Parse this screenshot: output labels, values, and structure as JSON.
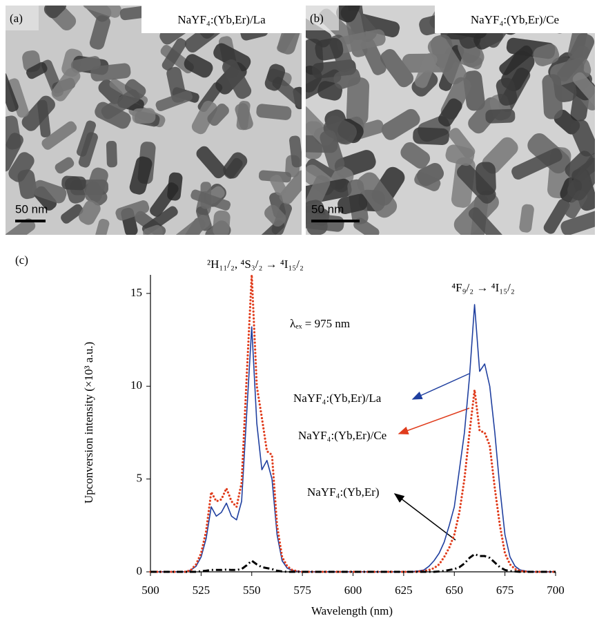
{
  "panels": [
    {
      "label": "(a)",
      "caption": "NaYF₄:(Yb,Er)/La",
      "scale_bar": "50 nm"
    },
    {
      "label": "(b)",
      "caption": "NaYF₄:(Yb,Er)/Ce",
      "scale_bar": "50 nm"
    }
  ],
  "panel_c_label": "(c)",
  "chart_data": {
    "type": "line",
    "xlabel": "Wavelength (nm)",
    "ylabel": "Upconversion intensity (×10³ a.u.)",
    "annotations": [
      "²H₁₁/₂, ⁴S₃/₂ → ⁴I₁₅/₂",
      "⁴F₉/₂ → ⁴I₁₅/₂",
      "λₑₓ = 975 nm"
    ],
    "xlim": [
      500,
      700
    ],
    "xticks": [
      500,
      525,
      550,
      575,
      600,
      625,
      650,
      675,
      700
    ],
    "ylim": [
      0,
      16
    ],
    "yticks": [
      0,
      5,
      10,
      15
    ],
    "x": [
      500,
      502.5,
      505,
      507.5,
      510,
      512.5,
      515,
      517.5,
      520,
      522.5,
      525,
      527.5,
      530,
      532.5,
      535,
      537.5,
      540,
      542.5,
      545,
      547.5,
      550,
      552.5,
      555,
      557.5,
      560,
      562.5,
      565,
      567.5,
      570,
      572.5,
      575,
      577.5,
      580,
      582.5,
      585,
      587.5,
      590,
      592.5,
      595,
      597.5,
      600,
      602.5,
      605,
      607.5,
      610,
      612.5,
      615,
      617.5,
      620,
      622.5,
      625,
      627.5,
      630,
      632.5,
      635,
      637.5,
      640,
      642.5,
      645,
      647.5,
      650,
      652.5,
      655,
      657.5,
      660,
      662.5,
      665,
      667.5,
      670,
      672.5,
      675,
      677.5,
      680,
      682.5,
      685,
      687.5,
      690,
      692.5,
      695,
      697.5,
      700
    ],
    "series": [
      {
        "name": "NaYF₄:(Yb,Er)/La",
        "color": "#1f3f9f",
        "line_style": "solid",
        "values": [
          0,
          0,
          0,
          0,
          0,
          0,
          0,
          0,
          0.1,
          0.3,
          0.8,
          1.8,
          3.5,
          3.0,
          3.2,
          3.7,
          3.0,
          2.8,
          3.8,
          8.5,
          13.2,
          8.0,
          5.5,
          6.0,
          5.0,
          2.0,
          0.6,
          0.2,
          0.08,
          0.03,
          0,
          0,
          0,
          0,
          0,
          0,
          0,
          0,
          0,
          0,
          0,
          0,
          0,
          0,
          0,
          0,
          0,
          0,
          0,
          0,
          0,
          0,
          0.02,
          0.05,
          0.1,
          0.3,
          0.6,
          1.0,
          1.6,
          2.5,
          3.5,
          5.5,
          7.5,
          10.5,
          14.4,
          10.8,
          11.2,
          10.0,
          7.5,
          4.5,
          2.0,
          0.8,
          0.3,
          0.1,
          0.05,
          0,
          0,
          0,
          0,
          0,
          0
        ]
      },
      {
        "name": "NaYF₄:(Yb,Er)/Ce",
        "color": "#e03c1c",
        "line_style": "dotted",
        "values": [
          0,
          0,
          0,
          0,
          0,
          0,
          0,
          0,
          0.1,
          0.4,
          1.0,
          2.2,
          4.3,
          3.8,
          3.9,
          4.5,
          3.8,
          3.5,
          4.8,
          10.5,
          16.0,
          10.0,
          8.3,
          6.5,
          6.3,
          2.5,
          0.8,
          0.3,
          0.1,
          0.03,
          0,
          0,
          0,
          0,
          0,
          0,
          0,
          0,
          0,
          0,
          0,
          0,
          0,
          0,
          0,
          0,
          0,
          0,
          0,
          0,
          0,
          0,
          0,
          0.02,
          0.05,
          0.1,
          0.2,
          0.4,
          0.8,
          1.3,
          2.0,
          3.2,
          5.0,
          7.5,
          9.8,
          7.6,
          7.5,
          6.8,
          4.5,
          2.5,
          1.0,
          0.4,
          0.15,
          0.05,
          0.02,
          0,
          0,
          0,
          0,
          0,
          0
        ]
      },
      {
        "name": "NaYF₄:(Yb,Er)",
        "color": "#000000",
        "line_style": "dashdot",
        "values": [
          0,
          0,
          0,
          0,
          0,
          0,
          0,
          0,
          0,
          0,
          0.03,
          0.06,
          0.1,
          0.1,
          0.1,
          0.12,
          0.1,
          0.1,
          0.15,
          0.35,
          0.6,
          0.4,
          0.25,
          0.2,
          0.15,
          0.06,
          0.02,
          0,
          0,
          0,
          0,
          0,
          0,
          0,
          0,
          0,
          0,
          0,
          0,
          0,
          0,
          0,
          0,
          0,
          0,
          0,
          0,
          0,
          0,
          0,
          0,
          0,
          0,
          0,
          0,
          0,
          0,
          0.02,
          0.05,
          0.1,
          0.15,
          0.25,
          0.45,
          0.75,
          0.95,
          0.85,
          0.85,
          0.75,
          0.5,
          0.25,
          0.1,
          0.04,
          0.02,
          0,
          0,
          0,
          0,
          0,
          0,
          0,
          0
        ]
      }
    ]
  }
}
